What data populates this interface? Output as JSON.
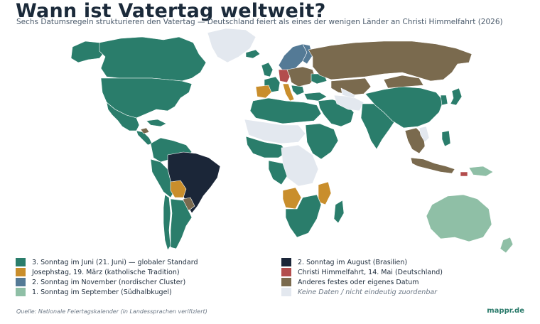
{
  "header": {
    "title": "Wann ist Vatertag weltweit?",
    "subtitle": "Sechs Datumsregeln strukturieren den Vatertag — Deutschland feiert als eines der wenigen Länder an Christi Himmelfahrt (2026)"
  },
  "colors": {
    "june": "#2a7d6b",
    "august": "#1b2638",
    "march": "#c98e2c",
    "ascension": "#b34d4d",
    "november": "#547a96",
    "other": "#7a6a4e",
    "september": "#8fbfa6",
    "nodata": "#e3e8ef"
  },
  "legend": {
    "items": [
      {
        "key": "june",
        "label": "3. Sonntag im Juni (21. Juni) — globaler Standard",
        "color": "#2a7d6b",
        "muted": false
      },
      {
        "key": "march",
        "label": "Josephstag, 19. März (katholische Tradition)",
        "color": "#c98e2c",
        "muted": false
      },
      {
        "key": "november",
        "label": "2. Sonntag im November (nordischer Cluster)",
        "color": "#547a96",
        "muted": false
      },
      {
        "key": "september",
        "label": "1. Sonntag im September (Südhalbkugel)",
        "color": "#8fbfa6",
        "muted": false
      },
      {
        "key": "august",
        "label": "2. Sonntag im August (Brasilien)",
        "color": "#1b2638",
        "muted": false
      },
      {
        "key": "ascension",
        "label": "Christi Himmelfahrt, 14. Mai (Deutschland)",
        "color": "#b34d4d",
        "muted": false
      },
      {
        "key": "other",
        "label": "Anderes festes oder eigenes Datum",
        "color": "#7a6a4e",
        "muted": false
      },
      {
        "key": "nodata",
        "label": "Keine Daten / nicht eindeutig zuordenbar",
        "color": "#e3e8ef",
        "muted": true
      }
    ]
  },
  "footer": {
    "source": "Quelle: Nationale Feiertagskalender (in Landessprachen verifiziert)",
    "brand": "mappr.de"
  }
}
